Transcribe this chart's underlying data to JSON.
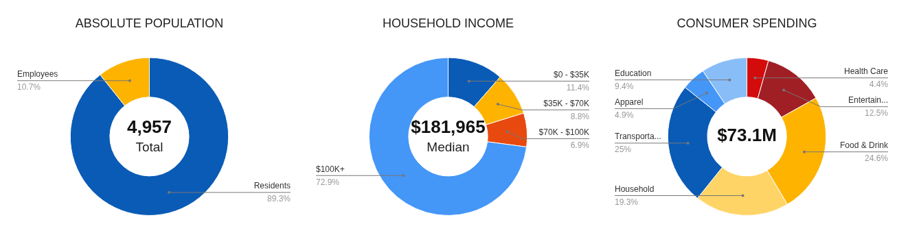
{
  "chart_data": [
    {
      "type": "donut",
      "title": "ABSOLUTE POPULATION",
      "categories": [
        "Residents",
        "Employees"
      ],
      "values": [
        89.3,
        10.7
      ],
      "colors": [
        "#0a5bb5",
        "#fdb300"
      ],
      "value_labels": [
        "89.3%",
        "10.7%"
      ],
      "annotations": [
        "4,957",
        "Total"
      ]
    },
    {
      "type": "donut",
      "title": "HOUSEHOLD INCOME",
      "categories": [
        "$0 - $35K",
        "$35K - $70K",
        "$70K - $100K",
        "$100K+"
      ],
      "values": [
        11.4,
        8.8,
        6.9,
        72.9
      ],
      "colors": [
        "#0a5bb5",
        "#fdb300",
        "#e8490f",
        "#4496f7"
      ],
      "value_labels": [
        "11.4%",
        "8.8%",
        "6.9%",
        "72.9%"
      ],
      "annotations": [
        "$181,965",
        "Median"
      ]
    },
    {
      "type": "donut",
      "title": "CONSUMER SPENDING",
      "categories": [
        "Health Care",
        "Entertain...",
        "Food & Drink",
        "Household",
        "Transporta...",
        "Apparel",
        "Education"
      ],
      "values": [
        4.4,
        12.5,
        24.6,
        19.3,
        25,
        4.9,
        9.4
      ],
      "colors": [
        "#d40b0b",
        "#a01f24",
        "#fdb300",
        "#ffd466",
        "#0a5bb5",
        "#4496f7",
        "#88bdf8"
      ],
      "value_labels": [
        "4.4%",
        "12.5%",
        "24.6%",
        "19.3%",
        "25%",
        "4.9%",
        "9.4%"
      ],
      "annotations": [
        "$73.1M"
      ]
    }
  ]
}
